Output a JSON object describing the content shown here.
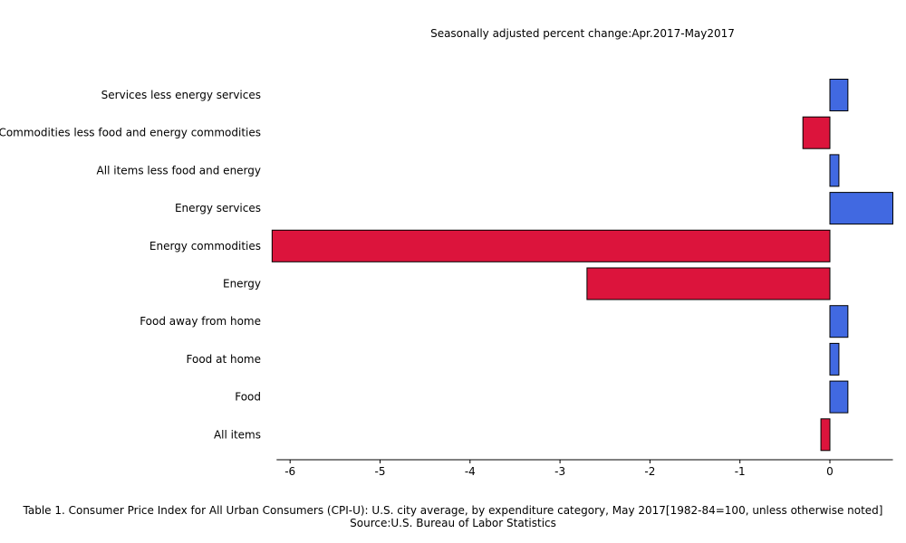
{
  "chart_data": {
    "type": "bar",
    "orientation": "horizontal",
    "title": "Seasonally adjusted percent change:Apr.2017-May2017",
    "categories": [
      "Services less energy services",
      "Commodities less food and energy commodities",
      "All items less food and energy",
      "Energy services",
      "Energy commodities",
      "Energy",
      "Food away from home",
      "Food at home",
      "Food",
      "All items"
    ],
    "values": [
      0.2,
      -0.3,
      0.1,
      0.7,
      -6.2,
      -2.7,
      0.2,
      0.1,
      0.2,
      -0.1
    ],
    "xlim": [
      -6.15,
      0.7
    ],
    "xticks": [
      -6,
      -5,
      -4,
      -3,
      -2,
      -1,
      0
    ],
    "xlabel": "",
    "ylabel": "",
    "grid": false,
    "colors": {
      "positive": "#4169E1",
      "negative": "#DC143C",
      "edge": "#000000"
    }
  },
  "caption": {
    "line1": "Table 1. Consumer Price Index for All Urban Consumers (CPI-U): U.S. city average, by expenditure category, May 2017[1982-84=100, unless otherwise noted]",
    "line2": "Source:U.S. Bureau of Labor Statistics"
  }
}
